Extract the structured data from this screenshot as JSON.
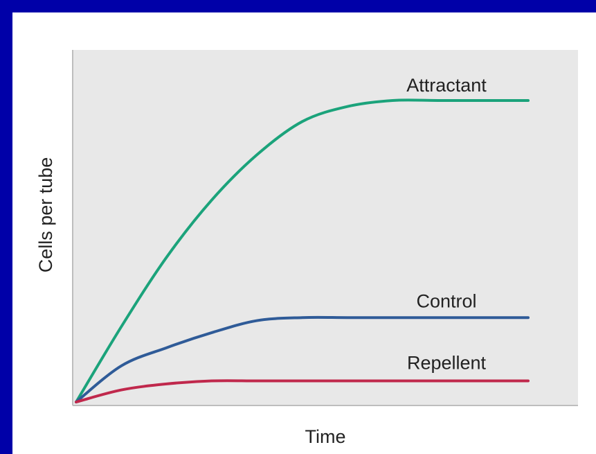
{
  "chart_data": {
    "type": "line",
    "x_label": "Time",
    "y_label": "Cells per tube",
    "x": [
      0,
      1,
      2,
      3,
      4,
      5,
      6,
      7,
      8,
      9,
      10
    ],
    "xlim": [
      0,
      10
    ],
    "ylim": [
      0,
      100
    ],
    "series": [
      {
        "name": "Attractant",
        "color": "#1ba37b",
        "values": [
          0,
          25,
          48,
          67,
          82,
          93,
          98,
          100,
          100,
          100,
          100
        ]
      },
      {
        "name": "Control",
        "color": "#2f5b98",
        "values": [
          0,
          12,
          18,
          23,
          27,
          28,
          28,
          28,
          28,
          28,
          28
        ]
      },
      {
        "name": "Repellent",
        "color": "#c0284c",
        "values": [
          0,
          4,
          6,
          7,
          7,
          7,
          7,
          7,
          7,
          7,
          7
        ]
      }
    ]
  }
}
